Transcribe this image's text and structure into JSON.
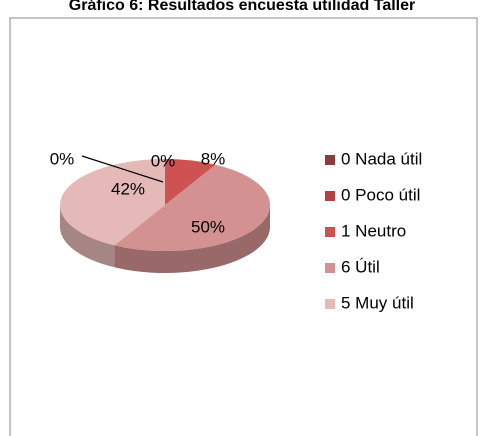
{
  "chart_data": {
    "type": "pie3d",
    "title": "Gráfico 6: Resultados encuesta utilidad Taller",
    "categories": [
      "0 Nada útil",
      "0 Poco útil",
      "1 Neutro",
      "6 Útil",
      "5 Muy útil"
    ],
    "values": [
      0,
      0,
      8,
      50,
      42
    ],
    "value_labels": [
      "0%",
      "0%",
      "8%",
      "50%",
      "42%"
    ],
    "colors": [
      "#8c3b3b",
      "#b54242",
      "#cf5252",
      "#d49191",
      "#e6b9b9"
    ],
    "legend": "right"
  }
}
